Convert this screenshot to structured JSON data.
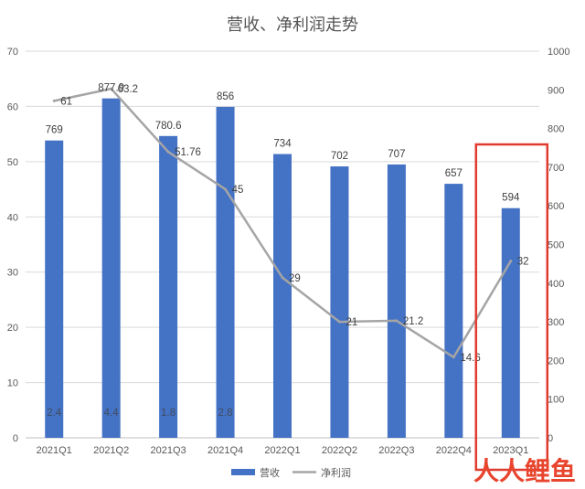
{
  "chart_data": {
    "type": "bar",
    "title": "营收、净利润走势",
    "categories": [
      "2021Q1",
      "2021Q2",
      "2021Q3",
      "2021Q4",
      "2022Q1",
      "2022Q2",
      "2022Q3",
      "2022Q4",
      "2023Q1"
    ],
    "series": [
      {
        "name": "营收",
        "type": "bar",
        "axis": "right",
        "color": "#4472C4",
        "values": [
          769,
          877.9,
          780.6,
          856,
          734,
          702,
          707,
          657,
          594
        ],
        "labels": [
          "769",
          "877.9",
          "780.6",
          "856",
          "734",
          "702",
          "707",
          "657",
          "594"
        ]
      },
      {
        "name": "净利润",
        "type": "line",
        "axis": "left",
        "color": "#A5A5A5",
        "values": [
          61,
          63.2,
          51.76,
          45,
          29,
          21,
          21.2,
          14.6,
          32
        ],
        "labels": [
          "61",
          "63.2",
          "51.76",
          "45",
          "29",
          "21",
          "21.2",
          "14.6",
          "32"
        ]
      }
    ],
    "extra_labels": [
      "2.4",
      "4.4",
      "1.8",
      "2.8"
    ],
    "y_left": {
      "ylim": [
        0,
        70
      ],
      "ticks": [
        "0",
        "10",
        "20",
        "30",
        "40",
        "50",
        "60",
        "70"
      ]
    },
    "y_right": {
      "ylim": [
        0,
        1000
      ],
      "ticks": [
        "0",
        "100",
        "200",
        "300",
        "400",
        "500",
        "600",
        "700",
        "800",
        "900",
        "1000"
      ]
    },
    "grid": true,
    "legend": "bottom-center",
    "highlight": {
      "category": "2023Q1",
      "color": "#E03B2E"
    }
  },
  "watermark": {
    "text": "人人鲤鱼",
    "color": "#E8452E"
  }
}
